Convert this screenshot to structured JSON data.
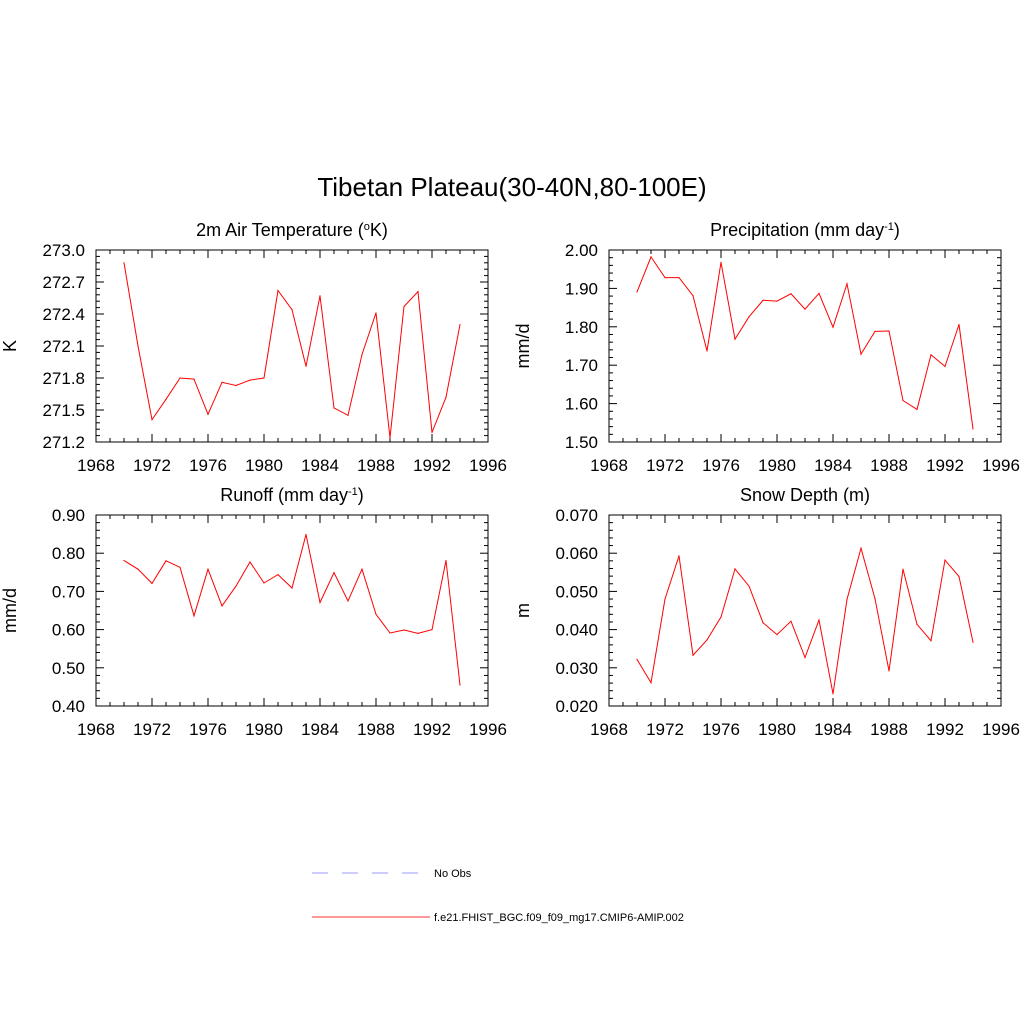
{
  "figure": {
    "title": "Tibetan Plateau(30-40N,80-100E)"
  },
  "legend": [
    {
      "label": "No Obs",
      "color": "#9999ff",
      "dash": "dashed"
    },
    {
      "label": "f.e21.FHIST_BGC.f09_f09_mg17.CMIP6-AMIP.002",
      "color": "#ff3333",
      "dash": "solid"
    }
  ],
  "chart_data": [
    {
      "type": "line",
      "title": "2m Air Temperature (oK)",
      "title_main": "2m Air Temperature (",
      "title_sup": "o",
      "title_tail": "K)",
      "ylabel": "K",
      "xlim": [
        1968,
        1996
      ],
      "ylim": [
        271.2,
        273.0
      ],
      "x_ticks": [
        "1968",
        "1972",
        "1976",
        "1980",
        "1984",
        "1988",
        "1992",
        "1996"
      ],
      "y_ticks": [
        "271.2",
        "271.5",
        "271.8",
        "272.1",
        "272.4",
        "272.7",
        "273.0"
      ],
      "x": [
        1970,
        1971,
        1972,
        1973,
        1974,
        1975,
        1976,
        1977,
        1978,
        1979,
        1980,
        1981,
        1982,
        1983,
        1984,
        1985,
        1986,
        1987,
        1988,
        1989,
        1990,
        1991,
        1992,
        1993,
        1994
      ],
      "series": [
        {
          "color": "#ff0000",
          "values": [
            272.88,
            272.1,
            271.41,
            271.6,
            271.8,
            271.79,
            271.46,
            271.76,
            271.73,
            271.78,
            271.8,
            272.62,
            272.44,
            271.91,
            272.57,
            271.52,
            271.45,
            272.02,
            272.41,
            271.24,
            272.47,
            272.61,
            271.29,
            271.62,
            272.3
          ]
        }
      ]
    },
    {
      "type": "line",
      "title": "Precipitation (mm day-1)",
      "title_main": "Precipitation (mm day",
      "title_sup": "-1",
      "title_tail": ")",
      "ylabel": "mm/d",
      "xlim": [
        1968,
        1996
      ],
      "ylim": [
        1.5,
        2.0
      ],
      "x_ticks": [
        "1968",
        "1972",
        "1976",
        "1980",
        "1984",
        "1988",
        "1992",
        "1996"
      ],
      "y_ticks": [
        "1.50",
        "1.60",
        "1.70",
        "1.80",
        "1.90",
        "2.00"
      ],
      "x": [
        1970,
        1971,
        1972,
        1973,
        1974,
        1975,
        1976,
        1977,
        1978,
        1979,
        1980,
        1981,
        1982,
        1983,
        1984,
        1985,
        1986,
        1987,
        1988,
        1989,
        1990,
        1991,
        1992,
        1993,
        1994
      ],
      "series": [
        {
          "color": "#ff0000",
          "values": [
            1.891,
            1.982,
            1.928,
            1.928,
            1.881,
            1.737,
            1.968,
            1.768,
            1.826,
            1.869,
            1.867,
            1.886,
            1.846,
            1.887,
            1.799,
            1.912,
            1.729,
            1.788,
            1.789,
            1.608,
            1.585,
            1.727,
            1.697,
            1.806,
            1.534
          ]
        }
      ]
    },
    {
      "type": "line",
      "title": "Runoff (mm day-1)",
      "title_main": "Runoff (mm day",
      "title_sup": "-1",
      "title_tail": ")",
      "ylabel": "mm/d",
      "xlim": [
        1968,
        1996
      ],
      "ylim": [
        0.4,
        0.9
      ],
      "x_ticks": [
        "1968",
        "1972",
        "1976",
        "1980",
        "1984",
        "1988",
        "1992",
        "1996"
      ],
      "y_ticks": [
        "0.40",
        "0.50",
        "0.60",
        "0.70",
        "0.80",
        "0.90"
      ],
      "x": [
        1970,
        1971,
        1972,
        1973,
        1974,
        1975,
        1976,
        1977,
        1978,
        1979,
        1980,
        1981,
        1982,
        1983,
        1984,
        1985,
        1986,
        1987,
        1988,
        1989,
        1990,
        1991,
        1992,
        1993,
        1994
      ],
      "series": [
        {
          "color": "#ff0000",
          "values": [
            0.781,
            0.758,
            0.721,
            0.78,
            0.763,
            0.636,
            0.758,
            0.662,
            0.714,
            0.777,
            0.722,
            0.744,
            0.709,
            0.849,
            0.671,
            0.749,
            0.675,
            0.758,
            0.64,
            0.591,
            0.599,
            0.59,
            0.6,
            0.781,
            0.455
          ]
        }
      ]
    },
    {
      "type": "line",
      "title": "Snow Depth (m)",
      "title_main": "Snow Depth (m)",
      "title_sup": "",
      "title_tail": "",
      "ylabel": "m",
      "xlim": [
        1968,
        1996
      ],
      "ylim": [
        0.02,
        0.07
      ],
      "x_ticks": [
        "1968",
        "1972",
        "1976",
        "1980",
        "1984",
        "1988",
        "1992",
        "1996"
      ],
      "y_ticks": [
        "0.020",
        "0.030",
        "0.040",
        "0.050",
        "0.060",
        "0.070"
      ],
      "x": [
        1970,
        1971,
        1972,
        1973,
        1974,
        1975,
        1976,
        1977,
        1978,
        1979,
        1980,
        1981,
        1982,
        1983,
        1984,
        1985,
        1986,
        1987,
        1988,
        1989,
        1990,
        1991,
        1992,
        1993,
        1994
      ],
      "series": [
        {
          "color": "#ff0000",
          "values": [
            0.0322,
            0.0261,
            0.048,
            0.0593,
            0.0333,
            0.0373,
            0.0433,
            0.0559,
            0.0514,
            0.0418,
            0.0387,
            0.0422,
            0.0327,
            0.0425,
            0.0232,
            0.0479,
            0.0613,
            0.0481,
            0.0292,
            0.0558,
            0.0414,
            0.0371,
            0.0582,
            0.0539,
            0.0367
          ]
        }
      ]
    }
  ]
}
